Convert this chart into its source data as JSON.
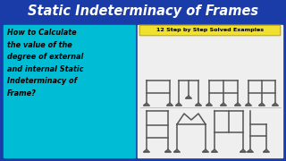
{
  "title": "Static Indeterminacy of Frames",
  "title_bg": "#1a3ca8",
  "title_color": "#ffffff",
  "left_bg": "#00bcd4",
  "right_bg": "#efefef",
  "left_text": "How to Calculate\nthe value of the\ndegree of external\nand internal Static\nIndeterminacy of\nFrame?",
  "left_text_color": "#000000",
  "badge_text": "12 Step by Step Solved Examples",
  "badge_bg": "#f0e030",
  "badge_border": "#b8a000",
  "badge_text_color": "#000000",
  "outer_border": "#1a3ca8",
  "frame_color": "#555555",
  "frame_lw": 1.1
}
